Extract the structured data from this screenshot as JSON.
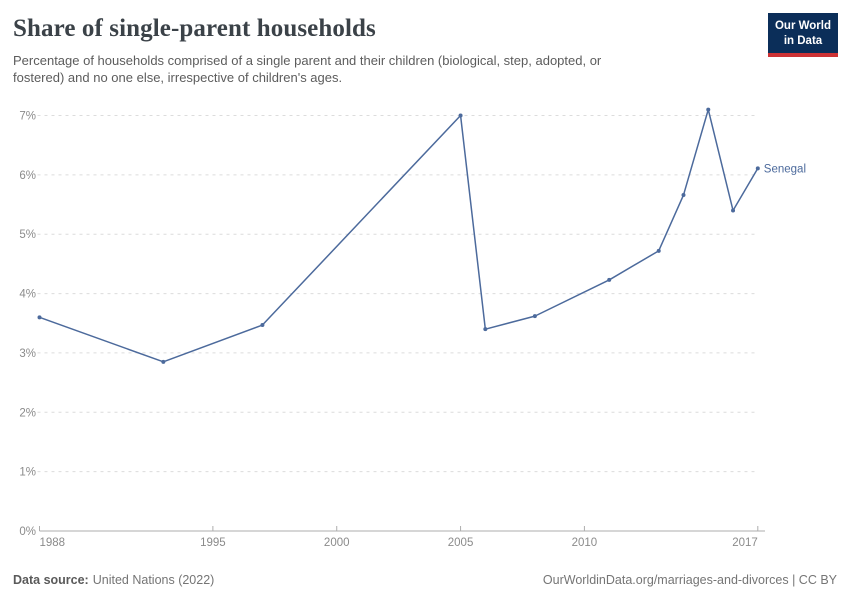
{
  "header": {
    "title": "Share of single-parent households",
    "subtitle_lines": [
      "Percentage of households comprised of a single parent and their children (biological, step, adopted, or",
      "fostered) and no one else, irrespective of children's ages."
    ],
    "logo": {
      "line1": "Our World",
      "line2": "in Data"
    }
  },
  "footer": {
    "source_label": "Data source:",
    "source_value": "United Nations (2022)",
    "right_text": "OurWorldinData.org/marriages-and-divorces | CC BY"
  },
  "chart_data": {
    "type": "line",
    "title": "Share of single-parent households",
    "xlabel": "",
    "ylabel": "",
    "xlim": [
      1988,
      2017
    ],
    "ylim": [
      0,
      7
    ],
    "xticks": [
      1988,
      1995,
      2000,
      2005,
      2010,
      2017
    ],
    "yticks": [
      0,
      1,
      2,
      3,
      4,
      5,
      6,
      7
    ],
    "ytick_format": "{v}%",
    "grid": "horizontal-dashed",
    "legend_position": "end-of-line-label",
    "series": [
      {
        "name": "Senegal",
        "color": "#4c6a9c",
        "x": [
          1988,
          1993,
          1997,
          2005,
          2006,
          2008,
          2011,
          2013,
          2014,
          2015,
          2016,
          2017
        ],
        "values": [
          3.6,
          2.85,
          3.47,
          7.0,
          3.4,
          3.62,
          4.23,
          4.72,
          5.66,
          7.1,
          5.4,
          6.11
        ]
      }
    ]
  },
  "colors": {
    "line": "#4c6a9c",
    "logo_bg": "#0b2e59",
    "logo_bar": "#cd3235",
    "title": "#3b4248",
    "subtitle": "#5c5c5c",
    "axis_text": "#8b8b8b",
    "gridline": "#dcdcdc",
    "axis_line": "#adadad",
    "footer_text": "#757575"
  }
}
